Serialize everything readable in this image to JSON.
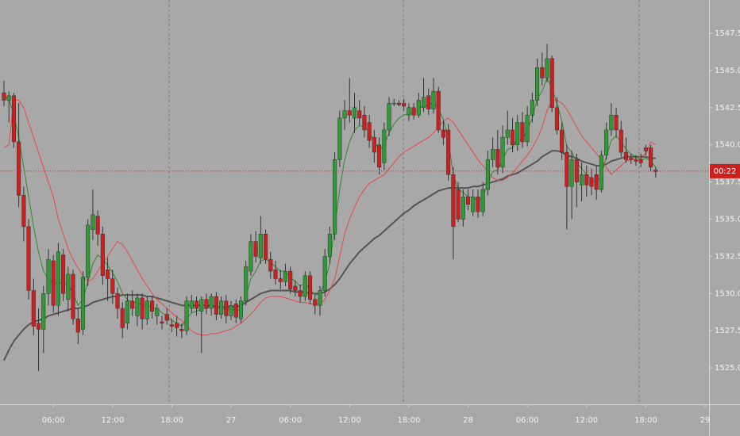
{
  "chart_data": {
    "type": "candlestick",
    "categories": [
      null,
      null,
      null,
      null,
      null,
      null,
      null,
      null,
      null,
      null,
      "06:00",
      null,
      null,
      null,
      null,
      null,
      null,
      null,
      null,
      null,
      null,
      null,
      "12:00",
      null,
      null,
      null,
      null,
      null,
      null,
      null,
      null,
      null,
      null,
      null,
      "18:00",
      null,
      null,
      null,
      null,
      null,
      null,
      null,
      null,
      null,
      null,
      null,
      "27",
      null,
      null,
      null,
      null,
      null,
      null,
      null,
      null,
      null,
      null,
      null,
      "06:00",
      null,
      null,
      null,
      null,
      null,
      null,
      null,
      null,
      null,
      null,
      null,
      "12:00",
      null,
      null,
      null,
      null,
      null,
      null,
      null,
      null,
      null,
      null,
      null,
      "18:00",
      null,
      null,
      null,
      null,
      null,
      null,
      null,
      null,
      null,
      null,
      null,
      "28",
      null,
      null,
      null,
      null,
      null,
      null,
      null,
      null,
      null,
      null,
      null,
      "06:00",
      null,
      null,
      null,
      null,
      null,
      null,
      null,
      null,
      null,
      null,
      null,
      "12:00",
      null,
      null,
      null,
      null,
      null,
      null,
      null,
      null,
      null,
      null,
      null,
      "18:00",
      null,
      null,
      null,
      null,
      null,
      null,
      null,
      null,
      null,
      null,
      null,
      "29"
    ],
    "open": [
      1543.5,
      1543.0,
      1543.3,
      1540.2,
      1536.6,
      1534.5,
      1530.2,
      1528.0,
      1527.6,
      1530.0,
      1532.2,
      1529.2,
      1532.6,
      1529.6,
      1531.3,
      1528.3,
      1527.6,
      1531.1,
      1534.3,
      1535.2,
      1534.0,
      1531.6,
      1531.0,
      1530.0,
      1529.0,
      1528.0,
      1529.5,
      1528.5,
      1529.7,
      1528.3,
      1529.5,
      1528.5,
      1528.1,
      1528.6,
      1527.9,
      1528.0,
      1527.6,
      1527.5,
      1529.0,
      1529.5,
      1528.8,
      1529.6,
      1529.0,
      1529.8,
      1528.6,
      1529.5,
      1528.5,
      1529.3,
      1528.3,
      1529.5,
      1531.5,
      1533.5,
      1532.4,
      1534.0,
      1532.3,
      1531.6,
      1531.0,
      1530.8,
      1531.5,
      1530.5,
      1530.2,
      1529.8,
      1531.2,
      1529.6,
      1529.2,
      1530.2,
      1532.5,
      1534.0,
      1539.0,
      1541.8,
      1542.3,
      1541.8,
      1542.3,
      1542.0,
      1541.5,
      1540.5,
      1540.0,
      1538.8,
      1541.0,
      1542.8,
      1542.8,
      1542.8,
      1542.0,
      1542.5,
      1542.0,
      1542.5,
      1543.3,
      1542.4,
      1543.6,
      1541.0,
      1541.0,
      1538.0,
      1537.0,
      1535.0,
      1536.5,
      1535.5,
      1536.5,
      1535.5,
      1537.0,
      1539.0,
      1539.7,
      1538.5,
      1540.5,
      1541.0,
      1540.0,
      1541.5,
      1540.2,
      1542.0,
      1543.0,
      1545.2,
      1544.5,
      1545.8,
      1542.5,
      1541.0,
      1539.5,
      1537.2,
      1539.0,
      1537.3,
      1538.0,
      1537.8,
      1538.0,
      1537.0,
      1539.3,
      1541.0,
      1542.0,
      1541.0,
      1539.5,
      1539.1,
      1539.0,
      1539.0,
      1539.8,
      1539.8,
      1538.3,
      null,
      null,
      null,
      null,
      null,
      null,
      null,
      null,
      null,
      null
    ],
    "high": [
      1544.3,
      1543.6,
      1543.5,
      1542.8,
      1537.2,
      1535.0,
      1531.0,
      1529.0,
      1530.5,
      1533.0,
      1532.6,
      1533.4,
      1533.0,
      1531.8,
      1531.6,
      1529.0,
      1531.5,
      1535.0,
      1537.0,
      1535.6,
      1534.5,
      1532.4,
      1531.6,
      1530.4,
      1529.4,
      1530.0,
      1530.2,
      1530.0,
      1530.0,
      1529.8,
      1529.8,
      1529.3,
      1528.5,
      1529.0,
      1528.3,
      1528.5,
      1528.0,
      1529.8,
      1529.9,
      1529.8,
      1529.8,
      1530.0,
      1530.0,
      1530.1,
      1529.8,
      1529.9,
      1529.5,
      1529.6,
      1529.8,
      1532.2,
      1534.0,
      1534.2,
      1535.2,
      1534.3,
      1532.8,
      1532.2,
      1531.6,
      1532.0,
      1531.8,
      1530.9,
      1530.6,
      1531.5,
      1531.5,
      1529.9,
      1530.5,
      1533.0,
      1534.5,
      1539.5,
      1542.3,
      1543.0,
      1544.5,
      1543.5,
      1543.0,
      1542.6,
      1542.0,
      1541.0,
      1540.5,
      1541.5,
      1543.2,
      1543.1,
      1543.0,
      1543.1,
      1542.8,
      1542.8,
      1543.5,
      1544.5,
      1543.8,
      1544.5,
      1543.9,
      1541.6,
      1541.4,
      1538.5,
      1537.5,
      1537.0,
      1537.0,
      1537.0,
      1537.0,
      1537.5,
      1539.6,
      1540.5,
      1541.0,
      1541.3,
      1542.3,
      1541.8,
      1542.0,
      1542.2,
      1542.6,
      1543.5,
      1545.8,
      1546.2,
      1546.8,
      1546.0,
      1543.2,
      1541.5,
      1540.0,
      1539.6,
      1539.4,
      1538.8,
      1538.6,
      1538.4,
      1538.6,
      1539.6,
      1541.5,
      1542.8,
      1542.5,
      1541.6,
      1540.5,
      1539.4,
      1539.3,
      1539.4,
      1540.0,
      1540.0,
      1538.5,
      null,
      null,
      null,
      null,
      null,
      null,
      null,
      null,
      null,
      null
    ],
    "low": [
      1542.6,
      1541.5,
      1539.8,
      1535.8,
      1533.5,
      1529.6,
      1527.2,
      1524.8,
      1526.0,
      1529.2,
      1528.7,
      1528.5,
      1529.5,
      1528.8,
      1527.9,
      1526.6,
      1527.2,
      1530.5,
      1533.6,
      1533.2,
      1530.6,
      1529.5,
      1529.3,
      1528.3,
      1527.0,
      1527.6,
      1528.5,
      1527.8,
      1527.6,
      1527.9,
      1528.3,
      1527.9,
      1527.6,
      1527.9,
      1527.4,
      1527.1,
      1527.0,
      1527.2,
      1528.7,
      1528.5,
      1526.0,
      1528.6,
      1528.5,
      1528.2,
      1528.3,
      1528.0,
      1528.2,
      1528.0,
      1528.0,
      1529.2,
      1531.2,
      1532.1,
      1532.0,
      1532.0,
      1531.0,
      1530.6,
      1530.3,
      1530.5,
      1530.0,
      1529.8,
      1529.4,
      1529.5,
      1529.3,
      1528.6,
      1528.5,
      1529.8,
      1532.0,
      1533.6,
      1538.5,
      1541.0,
      1541.5,
      1540.8,
      1541.3,
      1540.5,
      1539.8,
      1538.8,
      1538.0,
      1538.3,
      1540.6,
      1542.6,
      1542.6,
      1542.3,
      1541.6,
      1541.7,
      1541.8,
      1542.2,
      1542.0,
      1542.1,
      1540.8,
      1540.0,
      1537.6,
      1532.3,
      1534.8,
      1534.5,
      1535.6,
      1535.2,
      1535.1,
      1535.2,
      1536.6,
      1538.5,
      1538.0,
      1538.1,
      1540.0,
      1539.5,
      1539.6,
      1539.8,
      1539.9,
      1541.5,
      1542.6,
      1544.0,
      1544.2,
      1542.2,
      1540.7,
      1539.0,
      1534.3,
      1535.0,
      1535.8,
      1536.2,
      1536.5,
      1536.6,
      1536.3,
      1536.8,
      1539.0,
      1540.6,
      1540.5,
      1539.2,
      1538.8,
      1538.7,
      1538.6,
      1538.5,
      1539.3,
      1538.2,
      1537.8,
      null,
      null,
      null,
      null,
      null,
      null,
      null,
      null,
      null,
      null
    ],
    "close": [
      1543.0,
      1543.3,
      1540.2,
      1536.6,
      1534.5,
      1530.2,
      1527.8,
      1527.6,
      1530.0,
      1532.3,
      1529.2,
      1532.8,
      1530.0,
      1531.3,
      1528.3,
      1527.4,
      1531.1,
      1534.6,
      1535.3,
      1534.0,
      1531.2,
      1531.0,
      1530.0,
      1529.0,
      1527.7,
      1529.5,
      1529.0,
      1529.7,
      1528.3,
      1529.5,
      1528.8,
      1529.0,
      1528.0,
      1528.2,
      1527.8,
      1527.7,
      1527.5,
      1529.5,
      1529.5,
      1529.0,
      1529.6,
      1529.0,
      1529.8,
      1528.6,
      1529.5,
      1528.5,
      1529.2,
      1528.4,
      1529.5,
      1531.8,
      1533.5,
      1532.5,
      1534.0,
      1532.3,
      1531.5,
      1531.0,
      1530.8,
      1531.5,
      1530.3,
      1530.2,
      1529.8,
      1531.2,
      1529.6,
      1529.2,
      1530.2,
      1532.5,
      1534.0,
      1539.0,
      1541.8,
      1542.3,
      1542.0,
      1542.5,
      1541.8,
      1541.0,
      1540.3,
      1539.5,
      1538.5,
      1541.0,
      1542.8,
      1542.8,
      1542.7,
      1542.6,
      1542.5,
      1542.0,
      1543.0,
      1543.2,
      1542.4,
      1543.6,
      1541.0,
      1540.5,
      1538.0,
      1534.5,
      1535.0,
      1536.5,
      1536.0,
      1536.5,
      1535.5,
      1537.0,
      1539.0,
      1539.7,
      1538.5,
      1540.5,
      1541.0,
      1540.0,
      1541.5,
      1540.2,
      1542.0,
      1543.0,
      1545.2,
      1544.5,
      1545.8,
      1542.5,
      1541.0,
      1539.5,
      1537.2,
      1539.0,
      1537.5,
      1538.0,
      1537.3,
      1537.2,
      1537.0,
      1539.3,
      1541.0,
      1542.0,
      1541.0,
      1539.5,
      1539.0,
      1539.0,
      1538.9,
      1538.8,
      1539.6,
      1538.5,
      1538.2,
      null,
      null,
      null,
      null,
      null,
      null,
      null,
      null,
      null,
      null
    ],
    "up_color": "#2f9a35",
    "down_color": "#cc1f1f",
    "lines": [
      {
        "color": "#555555",
        "values": [
          1525.5,
          1526.2,
          1526.8,
          1527.2,
          1527.6,
          1527.9,
          1528.1,
          1528.2,
          1528.3,
          1528.5,
          1528.6,
          1528.7,
          1528.8,
          1528.9,
          1529.0,
          1529.0,
          1529.1,
          1529.2,
          1529.4,
          1529.5,
          1529.6,
          1529.7,
          1529.8,
          1529.8,
          1529.9,
          1529.9,
          1529.9,
          1529.9,
          1529.9,
          1529.8,
          1529.8,
          1529.7,
          1529.6,
          1529.5,
          1529.4,
          1529.3,
          1529.2,
          1529.2,
          1529.2,
          1529.2,
          1529.2,
          1529.2,
          1529.2,
          1529.1,
          1529.1,
          1529.1,
          1529.1,
          1529.1,
          1529.2,
          1529.4,
          1529.6,
          1529.8,
          1530.0,
          1530.1,
          1530.2,
          1530.2,
          1530.2,
          1530.2,
          1530.2,
          1530.1,
          1530.1,
          1530.1,
          1530.0,
          1530.0,
          1530.0,
          1530.1,
          1530.3,
          1530.6,
          1531.0,
          1531.5,
          1532.0,
          1532.4,
          1532.8,
          1533.1,
          1533.4,
          1533.7,
          1533.9,
          1534.2,
          1534.5,
          1534.8,
          1535.1,
          1535.4,
          1535.6,
          1535.9,
          1536.1,
          1536.3,
          1536.5,
          1536.7,
          1536.9,
          1537.0,
          1537.1,
          1537.1,
          1537.1,
          1537.1,
          1537.1,
          1537.2,
          1537.2,
          1537.3,
          1537.4,
          1537.5,
          1537.6,
          1537.7,
          1537.9,
          1538.0,
          1538.1,
          1538.3,
          1538.5,
          1538.7,
          1538.9,
          1539.2,
          1539.4,
          1539.6,
          1539.6,
          1539.5,
          1539.3,
          1539.2,
          1539.1,
          1538.9,
          1538.8,
          1538.7,
          1538.6,
          1538.6,
          1538.7,
          1538.9,
          1539.0,
          1539.1,
          1539.2,
          1539.2,
          1539.2,
          1539.2,
          1539.2,
          1539.1,
          1539.1,
          null,
          null,
          null,
          null,
          null,
          null,
          null,
          null,
          null,
          null
        ]
      },
      {
        "color": "#e8474a",
        "values": [
          1539.8,
          1540.0,
          1543.0,
          1543.0,
          1542.5,
          1541.5,
          1540.5,
          1539.5,
          1538.5,
          1537.5,
          1536.5,
          1535.0,
          1534.0,
          1533.0,
          1532.3,
          1531.7,
          1531.2,
          1530.8,
          1531.0,
          1531.5,
          1532.0,
          1532.5,
          1533.0,
          1533.5,
          1533.3,
          1532.8,
          1532.2,
          1531.6,
          1531.0,
          1530.5,
          1530.0,
          1529.6,
          1529.3,
          1529.0,
          1528.7,
          1528.4,
          1528.2,
          1527.8,
          1527.5,
          1527.3,
          1527.2,
          1527.2,
          1527.3,
          1527.3,
          1527.4,
          1527.5,
          1527.6,
          1527.8,
          1528.0,
          1528.3,
          1528.6,
          1529.0,
          1529.4,
          1529.7,
          1529.8,
          1529.8,
          1529.8,
          1529.7,
          1529.6,
          1529.5,
          1529.4,
          1529.4,
          1529.3,
          1529.3,
          1529.3,
          1529.6,
          1530.2,
          1531.0,
          1532.5,
          1534.0,
          1535.0,
          1535.8,
          1536.5,
          1537.0,
          1537.4,
          1537.6,
          1537.8,
          1538.0,
          1538.4,
          1538.8,
          1539.2,
          1539.5,
          1539.7,
          1539.9,
          1540.1,
          1540.3,
          1540.5,
          1540.8,
          1541.2,
          1541.6,
          1541.8,
          1541.5,
          1541.0,
          1540.5,
          1540.0,
          1539.5,
          1539.0,
          1538.6,
          1538.2,
          1537.8,
          1537.6,
          1537.6,
          1537.8,
          1538.1,
          1538.5,
          1538.9,
          1539.3,
          1539.8,
          1540.4,
          1541.2,
          1542.3,
          1543.0,
          1543.0,
          1542.8,
          1542.4,
          1541.8,
          1541.2,
          1540.6,
          1540.2,
          1539.8,
          1539.4,
          1539.0,
          1538.5,
          1538.0,
          1538.3,
          1538.6,
          1538.9,
          1539.0,
          1539.1,
          1539.2,
          1539.4,
          1540.2,
          1540.0,
          null,
          null,
          null,
          null,
          null,
          null,
          null,
          null,
          null,
          null
        ]
      },
      {
        "color": "#2e8b2e",
        "values": [
          1543.2,
          1543.1,
          1542.0,
          1540.5,
          1538.5,
          1536.5,
          1534.5,
          1532.8,
          1531.5,
          1531.0,
          1530.6,
          1530.8,
          1530.6,
          1530.6,
          1530.0,
          1529.2,
          1529.6,
          1530.8,
          1532.0,
          1532.6,
          1532.3,
          1531.9,
          1531.4,
          1530.8,
          1530.0,
          1529.6,
          1529.4,
          1529.4,
          1529.2,
          1529.2,
          1529.1,
          1529.0,
          1528.7,
          1528.5,
          1528.2,
          1528.0,
          1527.8,
          1528.3,
          1528.7,
          1528.8,
          1529.0,
          1529.0,
          1529.2,
          1529.0,
          1529.1,
          1528.9,
          1529.0,
          1528.8,
          1529.0,
          1529.8,
          1531.0,
          1531.5,
          1532.2,
          1532.3,
          1532.1,
          1531.8,
          1531.5,
          1531.5,
          1531.1,
          1530.8,
          1530.5,
          1530.7,
          1530.3,
          1529.9,
          1530.0,
          1530.8,
          1532.0,
          1534.5,
          1537.0,
          1539.0,
          1540.2,
          1541.0,
          1541.3,
          1541.2,
          1540.8,
          1540.3,
          1539.6,
          1540.0,
          1540.8,
          1541.4,
          1541.8,
          1542.0,
          1542.1,
          1542.1,
          1542.4,
          1542.7,
          1542.6,
          1542.9,
          1542.4,
          1541.7,
          1540.3,
          1538.0,
          1537.0,
          1536.8,
          1536.5,
          1536.5,
          1536.2,
          1536.5,
          1537.4,
          1538.2,
          1538.3,
          1539.0,
          1539.7,
          1539.8,
          1540.4,
          1540.3,
          1541.0,
          1541.8,
          1543.1,
          1543.6,
          1544.5,
          1543.8,
          1542.8,
          1541.6,
          1539.9,
          1539.5,
          1538.8,
          1538.4,
          1538.0,
          1537.7,
          1537.4,
          1538.0,
          1539.2,
          1540.3,
          1540.6,
          1540.2,
          1539.7,
          1539.4,
          1539.2,
          1539.0,
          1539.1,
          1538.9,
          1538.5,
          null,
          null,
          null,
          null,
          null,
          null,
          null,
          null,
          null,
          null
        ]
      }
    ],
    "ylim": [
      1522.55,
      1549.74
    ],
    "yticks": [
      {
        "value": 1525,
        "label": "1525.00"
      },
      {
        "value": 1527.5,
        "label": "1527.50"
      },
      {
        "value": 1530,
        "label": "1530.00"
      },
      {
        "value": 1532.5,
        "label": "1532.50"
      },
      {
        "value": 1535,
        "label": "1535.00"
      },
      {
        "value": 1537.5,
        "label": "1537.50"
      },
      {
        "value": 1540,
        "label": "1540.00"
      },
      {
        "value": 1542.5,
        "label": "1542.50"
      },
      {
        "value": 1545,
        "label": "1545.00"
      },
      {
        "value": 1547.5,
        "label": "1547.50"
      }
    ],
    "price_line": {
      "value": 1538.23,
      "label": "00:22",
      "color": "#cc1f1f"
    }
  }
}
